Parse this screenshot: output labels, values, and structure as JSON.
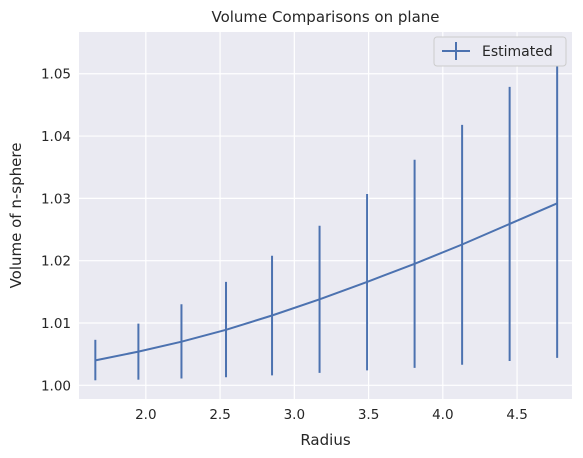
{
  "chart_data": {
    "type": "line",
    "title": "Volume Comparisons on plane",
    "xlabel": "Radius",
    "ylabel": "Volume of n-sphere",
    "xlim": [
      1.55,
      4.87
    ],
    "ylim": [
      0.9978,
      1.0567
    ],
    "xticks": [
      2.0,
      2.5,
      3.0,
      3.5,
      4.0,
      4.5
    ],
    "xtick_labels": [
      "2.0",
      "2.5",
      "3.0",
      "3.5",
      "4.0",
      "4.5"
    ],
    "yticks": [
      1.0,
      1.01,
      1.02,
      1.03,
      1.04,
      1.05
    ],
    "ytick_labels": [
      "1.00",
      "1.01",
      "1.02",
      "1.03",
      "1.04",
      "1.05"
    ],
    "grid": true,
    "legend": {
      "position": "top-right"
    },
    "color": "#4c72b0",
    "series": [
      {
        "name": "Estimated",
        "x": [
          1.66,
          1.95,
          2.24,
          2.54,
          2.85,
          3.17,
          3.49,
          3.81,
          4.13,
          4.45,
          4.77
        ],
        "y": [
          1.004,
          1.0054,
          1.007,
          1.0089,
          1.0112,
          1.0138,
          1.0166,
          1.0195,
          1.0226,
          1.0259,
          1.0292
        ],
        "err_low": [
          1.0008,
          1.0009,
          1.0011,
          1.0013,
          1.0016,
          1.002,
          1.0024,
          1.0028,
          1.0033,
          1.0039,
          1.0044
        ],
        "err_high": [
          1.0073,
          1.0099,
          1.013,
          1.0166,
          1.0208,
          1.0256,
          1.0307,
          1.0362,
          1.0418,
          1.0479,
          1.054
        ]
      }
    ]
  }
}
